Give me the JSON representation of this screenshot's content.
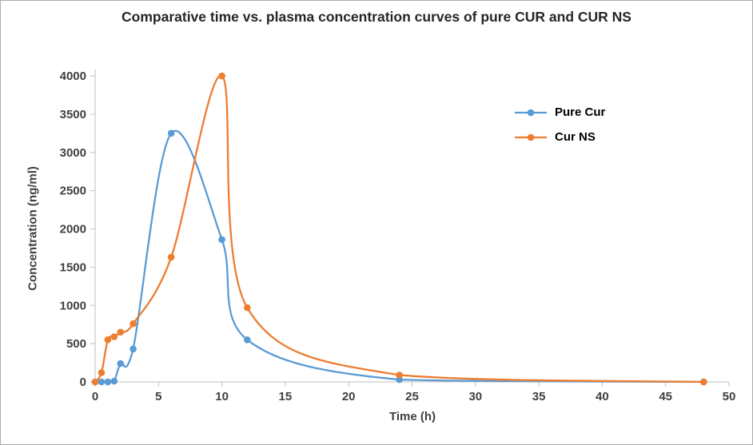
{
  "title": "Comparative time vs. plasma concentration curves of pure CUR and CUR NS",
  "chart_data": {
    "type": "line",
    "title": "Comparative time vs. plasma concentration curves of pure CUR and CUR NS",
    "xlabel": "Time (h)",
    "ylabel": "Concentration (ng/ml)",
    "x": [
      0,
      0.5,
      1,
      1.5,
      2,
      3,
      6,
      10,
      12,
      24,
      48
    ],
    "series": [
      {
        "name": "Pure Cur",
        "color": "#5B9BD5",
        "values": [
          0,
          0,
          0,
          10,
          240,
          430,
          3250,
          1860,
          550,
          30,
          0
        ]
      },
      {
        "name": "Cur NS",
        "color": "#ED7D31",
        "values": [
          0,
          120,
          550,
          590,
          650,
          760,
          1630,
          4000,
          970,
          90,
          0
        ]
      }
    ],
    "xlim": [
      0,
      50
    ],
    "ylim": [
      0,
      4000
    ],
    "xticks": [
      0,
      5,
      10,
      15,
      20,
      25,
      30,
      35,
      40,
      45,
      50
    ],
    "yticks": [
      0,
      500,
      1000,
      1500,
      2000,
      2500,
      3000,
      3500,
      4000
    ],
    "grid": false,
    "legend_position": "right",
    "axis_color": "#BFBFBF",
    "tick_text_color": "#404040",
    "marker": "circle",
    "line_style": "smooth"
  }
}
